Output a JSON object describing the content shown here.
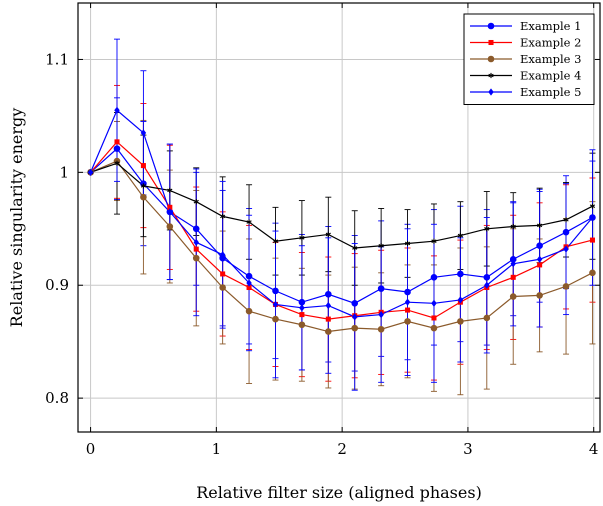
{
  "chart_data": {
    "type": "line",
    "xlabel": "Relative filter size (aligned phases)",
    "ylabel": "Relative singularity energy",
    "xlim": [
      -0.1,
      4.05
    ],
    "ylim": [
      0.77,
      1.15
    ],
    "xticks": [
      0,
      1,
      2,
      3,
      4
    ],
    "yticks": [
      0.8,
      0.9,
      1,
      1.1
    ],
    "xtick_labels": [
      "0",
      "1",
      "2",
      "3",
      "4"
    ],
    "ytick_labels": [
      "0.8",
      "0.9",
      "1",
      "1.1"
    ],
    "grid": true,
    "legend_position": "top-right",
    "x": [
      0,
      0.21,
      0.42,
      0.63,
      0.84,
      1.05,
      1.26,
      1.47,
      1.68,
      1.89,
      2.1,
      2.31,
      2.52,
      2.73,
      2.94,
      3.15,
      3.36,
      3.57,
      3.78,
      3.99
    ],
    "series": [
      {
        "name": "Example 1",
        "color": "#0000ff",
        "marker": "circle",
        "values": [
          1.0,
          1.021,
          0.99,
          0.965,
          0.95,
          0.924,
          0.908,
          0.895,
          0.885,
          0.892,
          0.884,
          0.897,
          0.894,
          0.907,
          0.91,
          0.907,
          0.923,
          0.935,
          0.947,
          0.96
        ],
        "errors": [
          0.0,
          0.045,
          0.055,
          0.06,
          0.05,
          0.06,
          0.06,
          0.06,
          0.06,
          0.06,
          0.06,
          0.06,
          0.06,
          0.06,
          0.06,
          0.06,
          0.05,
          0.05,
          0.05,
          0.05
        ]
      },
      {
        "name": "Example 2",
        "color": "#ff0000",
        "marker": "square",
        "values": [
          1.0,
          1.027,
          1.006,
          0.969,
          0.932,
          0.91,
          0.898,
          0.883,
          0.874,
          0.87,
          0.873,
          0.876,
          0.878,
          0.871,
          0.885,
          0.898,
          0.907,
          0.918,
          0.934,
          0.94
        ],
        "errors": [
          0.0,
          0.05,
          0.055,
          0.055,
          0.055,
          0.055,
          0.055,
          0.055,
          0.055,
          0.055,
          0.055,
          0.055,
          0.055,
          0.055,
          0.055,
          0.055,
          0.055,
          0.055,
          0.055,
          0.055
        ]
      },
      {
        "name": "Example 3",
        "color": "#8b5a2b",
        "marker": "circle",
        "values": [
          1.0,
          1.01,
          0.978,
          0.952,
          0.924,
          0.898,
          0.877,
          0.87,
          0.865,
          0.859,
          0.862,
          0.861,
          0.868,
          0.862,
          0.868,
          0.871,
          0.89,
          0.891,
          0.899,
          0.911
        ],
        "errors": [
          0.0,
          0.035,
          0.068,
          0.05,
          0.06,
          0.05,
          0.064,
          0.054,
          0.05,
          0.05,
          0.054,
          0.05,
          0.05,
          0.056,
          0.065,
          0.063,
          0.06,
          0.05,
          0.06,
          0.063
        ]
      },
      {
        "name": "Example 4",
        "color": "#000000",
        "marker": "star",
        "values": [
          1.0,
          1.008,
          0.988,
          0.984,
          0.974,
          0.961,
          0.956,
          0.939,
          0.942,
          0.945,
          0.933,
          0.935,
          0.937,
          0.939,
          0.944,
          0.95,
          0.952,
          0.953,
          0.958,
          0.97
        ],
        "errors": [
          0.0,
          0.045,
          0.045,
          0.035,
          0.03,
          0.035,
          0.033,
          0.03,
          0.033,
          0.033,
          0.033,
          0.033,
          0.03,
          0.033,
          0.03,
          0.033,
          0.03,
          0.033,
          0.033,
          0.047
        ]
      },
      {
        "name": "Example 5",
        "color": "#0000ff",
        "marker": "diamond",
        "values": [
          1.0,
          1.055,
          1.035,
          0.965,
          0.938,
          0.927,
          0.902,
          0.883,
          0.88,
          0.882,
          0.872,
          0.874,
          0.885,
          0.884,
          0.887,
          0.9,
          0.919,
          0.923,
          0.932,
          0.96
        ],
        "errors": [
          0.0,
          0.063,
          0.055,
          0.06,
          0.065,
          0.065,
          0.06,
          0.065,
          0.055,
          0.06,
          0.065,
          0.06,
          0.065,
          0.07,
          0.055,
          0.06,
          0.055,
          0.06,
          0.058,
          0.06
        ]
      }
    ]
  }
}
